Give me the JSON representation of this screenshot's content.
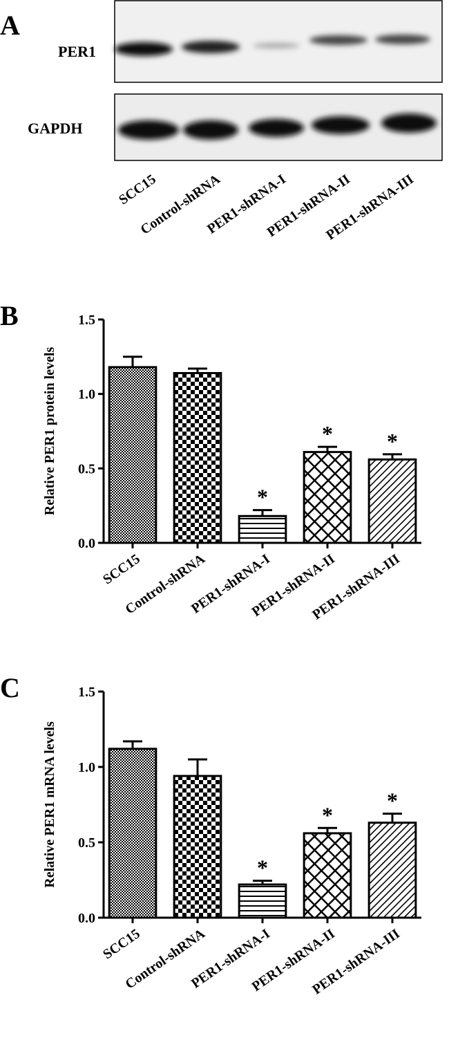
{
  "blot": {
    "panel_label": "A",
    "rows": [
      "PER1",
      "GAPDH"
    ],
    "lanes": [
      "SCC15",
      "Control-shRNA",
      "PER1-shRNA-I",
      "PER1-shRNA-II",
      "PER1-shRNA-III"
    ]
  },
  "chart_data": [
    {
      "type": "bar",
      "panel_label": "B",
      "y_label": "Relative  PER1  protein  levels",
      "categories": [
        "SCC15",
        "Control-shRNA",
        "PER1-shRNA-I",
        "PER1-shRNA-II",
        "PER1-shRNA-III"
      ],
      "values": [
        1.18,
        1.14,
        0.18,
        0.61,
        0.56
      ],
      "errors": [
        0.07,
        0.03,
        0.04,
        0.035,
        0.035
      ],
      "significance": [
        null,
        null,
        "*",
        "*",
        "*"
      ],
      "color": "#000000",
      "ylim": [
        0,
        1.5
      ],
      "yticks": [
        {
          "value": 0,
          "label": "0.0"
        },
        0.5,
        {
          "value": 1,
          "label": "1.0"
        },
        1.5
      ]
    },
    {
      "type": "bar",
      "panel_label": "C",
      "y_label": "Relative  PER1  mRNA  levels",
      "categories": [
        "SCC15",
        "Control-shRNA",
        "PER1-shRNA-I",
        "PER1-shRNA-II",
        "PER1-shRNA-III"
      ],
      "values": [
        1.12,
        0.94,
        0.22,
        0.56,
        0.63
      ],
      "errors": [
        0.05,
        0.11,
        0.025,
        0.035,
        0.06
      ],
      "significance": [
        null,
        null,
        "*",
        "*",
        "*"
      ],
      "color": "#000000",
      "ylim": [
        0,
        1.5
      ],
      "yticks": [
        {
          "value": 0,
          "label": "0.0"
        },
        0.5,
        {
          "value": 1,
          "label": "1.0"
        },
        1.5
      ]
    }
  ]
}
